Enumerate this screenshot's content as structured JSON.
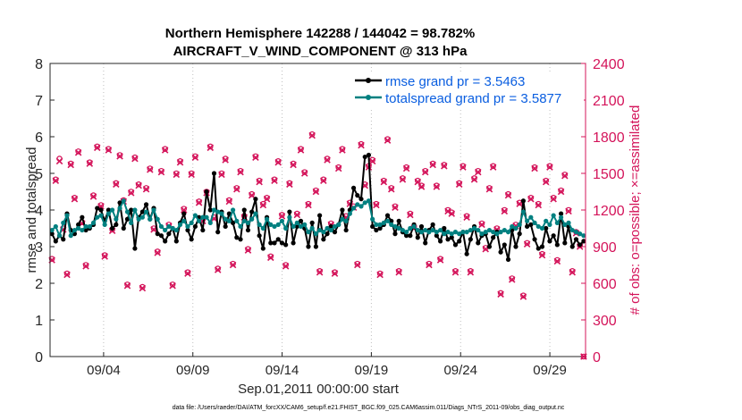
{
  "chart_data": {
    "type": "line",
    "title_line1": "Northern Hemisphere 142288 / 144042 = 98.782%",
    "title_line2": "AIRCRAFT_V_WIND_COMPONENT @ 313 hPa",
    "xlabel": "Sep.01,2011 00:00:00 start",
    "ylabel": "rmse and totalspread",
    "ylabel_right": "# of obs: o=possible; ×=assimilated",
    "x_ticks": [
      {
        "day": 4,
        "label": "09/04"
      },
      {
        "day": 9,
        "label": "09/09"
      },
      {
        "day": 14,
        "label": "09/14"
      },
      {
        "day": 19,
        "label": "09/19"
      },
      {
        "day": 24,
        "label": "09/24"
      },
      {
        "day": 29,
        "label": "09/29"
      }
    ],
    "xlim": [
      1.0,
      31.0
    ],
    "ylim": [
      0,
      8
    ],
    "y_ticks": [
      "0",
      "1",
      "2",
      "3",
      "4",
      "5",
      "6",
      "7",
      "8"
    ],
    "ylim_right": [
      0,
      2400
    ],
    "y_ticks_right": [
      "0",
      "300",
      "600",
      "900",
      "1200",
      "1500",
      "1800",
      "2100",
      "2400"
    ],
    "legend": {
      "position": "top-right",
      "entries": [
        {
          "name": "rmse",
          "label": "rmse grand pr = 3.5463",
          "color": "#000000"
        },
        {
          "name": "totalspread",
          "label": "totalspread grand pr = 3.5877",
          "color": "#008080"
        }
      ]
    },
    "series": [
      {
        "name": "rmse",
        "color": "#000000",
        "values": [
          3.35,
          3.15,
          3.3,
          3.2,
          3.9,
          3.45,
          3.35,
          3.6,
          3.8,
          3.45,
          3.5,
          3.6,
          4.05,
          4.0,
          3.7,
          4.0,
          3.5,
          3.6,
          4.2,
          3.5,
          3.75,
          4.0,
          2.95,
          3.8,
          3.95,
          4.15,
          3.75,
          4.05,
          3.35,
          3.3,
          3.15,
          3.35,
          3.5,
          3.15,
          3.65,
          3.9,
          3.45,
          3.2,
          3.55,
          3.8,
          3.45,
          4.5,
          4.0,
          5.0,
          3.4,
          3.95,
          3.55,
          3.9,
          3.65,
          3.25,
          3.2,
          4.0,
          3.45,
          3.95,
          4.3,
          3.3,
          2.95,
          3.8,
          3.1,
          3.1,
          3.2,
          3.1,
          3.05,
          3.95,
          3.1,
          3.55,
          3.7,
          3.5,
          3.0,
          3.65,
          3.0,
          3.85,
          3.2,
          3.35,
          3.55,
          3.4,
          3.6,
          4.0,
          3.45,
          4.0,
          4.6,
          4.4,
          4.3,
          5.45,
          5.5,
          3.55,
          3.45,
          3.5,
          3.6,
          3.85,
          3.7,
          3.35,
          3.7,
          3.4,
          3.3,
          3.3,
          3.6,
          3.25,
          3.55,
          3.1,
          3.45,
          3.6,
          3.3,
          3.15,
          3.5,
          3.2,
          3.25,
          3.05,
          3.15,
          3.4,
          2.8,
          3.2,
          3.55,
          3.1,
          3.3,
          3.35,
          3.0,
          3.25,
          3.4,
          2.85,
          3.05,
          2.65,
          3.45,
          3.0,
          3.35,
          4.25,
          3.55,
          3.6,
          3.2,
          2.95,
          3.0,
          3.5,
          3.15,
          3.3,
          3.05,
          3.9,
          3.1,
          3.55,
          3.0,
          3.2,
          3.05,
          3.15
        ]
      },
      {
        "name": "totalspread",
        "color": "#008080",
        "values": [
          3.45,
          3.55,
          3.3,
          3.65,
          3.85,
          3.3,
          3.45,
          3.5,
          3.45,
          3.55,
          3.55,
          3.65,
          3.8,
          3.85,
          3.6,
          3.9,
          4.0,
          3.75,
          4.05,
          4.25,
          3.95,
          3.65,
          4.0,
          3.75,
          3.8,
          3.95,
          3.75,
          4.0,
          3.75,
          3.55,
          3.45,
          3.55,
          3.5,
          3.45,
          3.6,
          3.7,
          3.55,
          3.65,
          3.85,
          3.7,
          3.8,
          3.8,
          3.65,
          4.0,
          3.95,
          3.9,
          3.75,
          3.7,
          4.0,
          3.7,
          3.55,
          3.7,
          3.65,
          3.75,
          3.9,
          3.6,
          3.5,
          3.75,
          3.6,
          3.55,
          3.6,
          3.7,
          3.5,
          3.8,
          3.55,
          3.65,
          3.55,
          3.6,
          3.4,
          3.5,
          3.35,
          3.45,
          3.4,
          3.5,
          3.45,
          3.55,
          3.6,
          3.75,
          3.7,
          3.9,
          4.05,
          4.15,
          4.1,
          4.2,
          4.25,
          3.75,
          3.6,
          3.6,
          3.65,
          3.7,
          3.6,
          3.55,
          3.5,
          3.45,
          3.4,
          3.5,
          3.55,
          3.45,
          3.4,
          3.45,
          3.4,
          3.45,
          3.4,
          3.45,
          3.35,
          3.4,
          3.35,
          3.4,
          3.35,
          3.4,
          3.4,
          3.45,
          3.5,
          3.45,
          3.35,
          3.4,
          3.45,
          3.4,
          3.35,
          3.4,
          3.45,
          3.4,
          3.55,
          3.5,
          3.6,
          3.95,
          3.7,
          3.8,
          3.65,
          3.55,
          3.5,
          3.7,
          3.6,
          3.85,
          3.65,
          3.8,
          3.6,
          3.65,
          3.45,
          3.4,
          3.35,
          3.3
        ]
      }
    ],
    "obs_series": [
      {
        "name": "possible",
        "marker": "o",
        "color": "#d4145a",
        "values": [
          800,
          1450,
          1620,
          1050,
          680,
          1580,
          1300,
          1680,
          1100,
          750,
          1590,
          1320,
          1720,
          1240,
          830,
          1700,
          1040,
          1420,
          1650,
          1280,
          590,
          1350,
          1630,
          1410,
          570,
          1380,
          1540,
          1050,
          860,
          1520,
          1700,
          1080,
          590,
          1500,
          1600,
          1210,
          690,
          1500,
          1640,
          1270,
          1120,
          1350,
          1720,
          1140,
          720,
          1500,
          1620,
          1280,
          760,
          1380,
          1520,
          1150,
          880,
          1330,
          1640,
          1440,
          1250,
          1300,
          820,
          1450,
          1600,
          1160,
          750,
          1420,
          1580,
          1170,
          1700,
          1510,
          1250,
          1820,
          1360,
          700,
          1450,
          1620,
          1090,
          690,
          1550,
          1700,
          1150,
          1260,
          1230,
          760,
          1740,
          1410,
          1560,
          1610,
          1250,
          680,
          1440,
          1780,
          1380,
          1230,
          700,
          1460,
          1550,
          1170,
          1060,
          1440,
          1400,
          1520,
          760,
          1580,
          1400,
          800,
          1570,
          1200,
          1180,
          700,
          1420,
          1560,
          1150,
          700,
          1460,
          1520,
          1090,
          890,
          1380,
          1560,
          1050,
          520,
          1200,
          1330,
          640,
          1080,
          1260,
          500,
          930,
          1300,
          1550,
          1250,
          840,
          1440,
          1560,
          1300,
          790,
          1360,
          1490,
          1200,
          700,
          1020,
          910,
          0
        ]
      },
      {
        "name": "assimilated",
        "marker": "x",
        "color": "#d4145a",
        "values": [
          790,
          1440,
          1600,
          1040,
          670,
          1570,
          1290,
          1670,
          1090,
          740,
          1580,
          1310,
          1710,
          1230,
          820,
          1690,
          1030,
          1410,
          1640,
          1270,
          580,
          1340,
          1620,
          1400,
          560,
          1370,
          1530,
          1040,
          850,
          1510,
          1690,
          1070,
          580,
          1490,
          1590,
          1200,
          680,
          1490,
          1630,
          1260,
          1110,
          1340,
          1710,
          1130,
          710,
          1490,
          1610,
          1270,
          750,
          1370,
          1510,
          1140,
          870,
          1320,
          1630,
          1430,
          1240,
          1290,
          810,
          1440,
          1590,
          1150,
          740,
          1410,
          1570,
          1160,
          1690,
          1500,
          1240,
          1810,
          1350,
          690,
          1440,
          1610,
          1080,
          680,
          1540,
          1690,
          1140,
          1250,
          1220,
          750,
          1730,
          1400,
          1550,
          1600,
          1240,
          670,
          1430,
          1770,
          1370,
          1220,
          690,
          1450,
          1540,
          1160,
          1050,
          1430,
          1390,
          1510,
          750,
          1570,
          1390,
          790,
          1560,
          1190,
          1170,
          690,
          1410,
          1550,
          1140,
          690,
          1450,
          1510,
          1080,
          880,
          1370,
          1550,
          1040,
          510,
          1190,
          1320,
          630,
          1070,
          1250,
          490,
          920,
          1290,
          1540,
          1240,
          830,
          1430,
          1550,
          1290,
          780,
          1350,
          1480,
          1190,
          690,
          1010,
          900,
          0
        ]
      }
    ]
  },
  "footer_text": "data file: /Users/raeder/DAI/ATM_forcXX/CAM6_setup/f.e21.FHIST_BGC.f09_025.CAM6assim.011/Diags_NTrS_2011-09/obs_diag_output.nc"
}
